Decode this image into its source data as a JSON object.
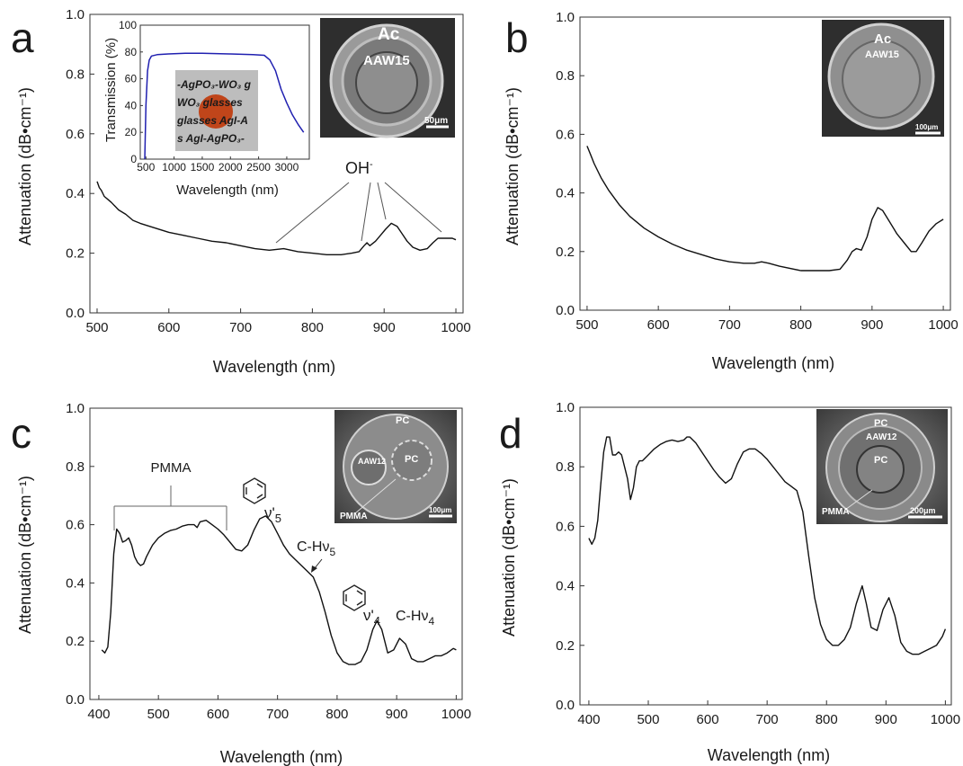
{
  "chart_data": [
    {
      "panel": "a",
      "type": "line",
      "xlabel": "Wavelength (nm)",
      "ylabel": "Attenuation (dB•cm⁻¹)",
      "xlim": [
        490,
        1010
      ],
      "ylim": [
        0.0,
        1.0
      ],
      "x_ticks": [
        500,
        600,
        700,
        800,
        900,
        1000
      ],
      "y_ticks": [
        0.0,
        0.2,
        0.4,
        0.6,
        0.8,
        1.0
      ],
      "x_tick_labels": [
        "500",
        "600",
        "700",
        "800",
        "900",
        "1000"
      ],
      "y_tick_labels": [
        "0.0",
        "0.2",
        "0.4",
        "0.6",
        "0.8",
        "1.0"
      ],
      "series": [
        {
          "x": [
            500,
            503,
            506,
            510,
            515,
            520,
            530,
            540,
            550,
            560,
            580,
            600,
            620,
            640,
            660,
            680,
            700,
            720,
            740,
            760,
            780,
            800,
            820,
            840,
            855,
            865,
            872,
            876,
            880,
            888,
            895,
            902,
            910,
            918,
            925,
            932,
            940,
            950,
            960,
            968,
            975,
            985,
            995,
            1000
          ],
          "y": [
            0.44,
            0.42,
            0.41,
            0.39,
            0.38,
            0.37,
            0.345,
            0.33,
            0.31,
            0.3,
            0.285,
            0.27,
            0.26,
            0.25,
            0.24,
            0.235,
            0.225,
            0.215,
            0.21,
            0.215,
            0.205,
            0.2,
            0.195,
            0.195,
            0.2,
            0.205,
            0.225,
            0.235,
            0.225,
            0.24,
            0.26,
            0.28,
            0.3,
            0.29,
            0.265,
            0.24,
            0.22,
            0.21,
            0.215,
            0.235,
            0.25,
            0.25,
            0.25,
            0.245
          ]
        }
      ],
      "annotations": [
        {
          "text": "OH",
          "superscript": "-"
        }
      ],
      "inset": {
        "type": "line",
        "xlabel": "Wavelength (nm)",
        "ylabel": "Transmission (%)",
        "xlim": [
          400,
          3400
        ],
        "ylim": [
          0,
          100
        ],
        "x_ticks": [
          500,
          1000,
          1500,
          2000,
          2500,
          3000
        ],
        "y_ticks": [
          0,
          20,
          40,
          60,
          80,
          100
        ],
        "x_tick_labels": [
          "500",
          "1000",
          "1500",
          "2000",
          "2500",
          "3000"
        ],
        "y_tick_labels": [
          "0",
          "20",
          "40",
          "60",
          "80",
          "100"
        ],
        "color": "#2020b0",
        "series": [
          {
            "x": [
              480,
              500,
              530,
              560,
              600,
              700,
              900,
              1200,
              1500,
              2000,
              2400,
              2600,
              2700,
              2800,
              2900,
              3000,
              3100,
              3200,
              3300
            ],
            "y": [
              0,
              40,
              66,
              74,
              77,
              78,
              78.5,
              79,
              79,
              78.5,
              78,
              77.5,
              74,
              66,
              52,
              42,
              33,
              26,
              20
            ]
          }
        ],
        "sample_text_lines": [
          "-AgPO₃-WO₃  g",
          "WO₃  glasses",
          "glasses  AgI-A",
          "s  AgI-AgPO₃-"
        ]
      },
      "micrograph": {
        "labels": [
          "Ac",
          "AAW15"
        ],
        "scale_bar": "50μm"
      }
    },
    {
      "panel": "b",
      "type": "line",
      "xlabel": "Wavelength (nm)",
      "ylabel": "Attenuation (dB•cm⁻¹)",
      "xlim": [
        490,
        1010
      ],
      "ylim": [
        0.0,
        1.0
      ],
      "x_ticks": [
        500,
        600,
        700,
        800,
        900,
        1000
      ],
      "y_ticks": [
        0.0,
        0.2,
        0.4,
        0.6,
        0.8,
        1.0
      ],
      "x_tick_labels": [
        "500",
        "600",
        "700",
        "800",
        "900",
        "1000"
      ],
      "y_tick_labels": [
        "0.0",
        "0.2",
        "0.4",
        "0.6",
        "0.8",
        "1.0"
      ],
      "series": [
        {
          "x": [
            500,
            505,
            510,
            520,
            530,
            545,
            560,
            580,
            600,
            620,
            640,
            660,
            680,
            700,
            720,
            735,
            745,
            755,
            770,
            800,
            820,
            840,
            855,
            865,
            872,
            878,
            885,
            893,
            900,
            908,
            915,
            925,
            935,
            945,
            955,
            962,
            970,
            980,
            990,
            1000
          ],
          "y": [
            0.56,
            0.53,
            0.5,
            0.45,
            0.41,
            0.36,
            0.32,
            0.28,
            0.25,
            0.225,
            0.205,
            0.19,
            0.175,
            0.165,
            0.16,
            0.16,
            0.165,
            0.16,
            0.15,
            0.135,
            0.135,
            0.135,
            0.14,
            0.17,
            0.2,
            0.21,
            0.205,
            0.25,
            0.31,
            0.35,
            0.34,
            0.3,
            0.26,
            0.23,
            0.2,
            0.2,
            0.23,
            0.27,
            0.295,
            0.31
          ]
        }
      ],
      "micrograph": {
        "labels": [
          "Ac",
          "AAW15"
        ],
        "scale_bar": "100μm"
      }
    },
    {
      "panel": "c",
      "type": "line",
      "xlabel": "Wavelength (nm)",
      "ylabel": "Attenuation (dB•cm⁻¹)",
      "xlim": [
        385,
        1010
      ],
      "ylim": [
        0.0,
        1.0
      ],
      "x_ticks": [
        400,
        500,
        600,
        700,
        800,
        900,
        1000
      ],
      "y_ticks": [
        0.0,
        0.2,
        0.4,
        0.6,
        0.8,
        1.0
      ],
      "x_tick_labels": [
        "400",
        "500",
        "600",
        "700",
        "800",
        "900",
        "1000"
      ],
      "y_tick_labels": [
        "0.0",
        "0.2",
        "0.4",
        "0.6",
        "0.8",
        "1.0"
      ],
      "series": [
        {
          "x": [
            405,
            410,
            415,
            420,
            425,
            430,
            435,
            440,
            445,
            450,
            455,
            460,
            465,
            470,
            475,
            480,
            485,
            490,
            500,
            510,
            520,
            530,
            540,
            550,
            560,
            565,
            570,
            580,
            590,
            600,
            610,
            620,
            630,
            640,
            650,
            660,
            670,
            680,
            690,
            700,
            710,
            720,
            730,
            740,
            750,
            760,
            770,
            780,
            790,
            800,
            810,
            820,
            830,
            840,
            850,
            860,
            867,
            875,
            885,
            895,
            905,
            915,
            925,
            935,
            945,
            955,
            965,
            975,
            985,
            995,
            1000
          ],
          "y": [
            0.17,
            0.16,
            0.18,
            0.3,
            0.5,
            0.585,
            0.57,
            0.54,
            0.545,
            0.555,
            0.53,
            0.49,
            0.47,
            0.46,
            0.465,
            0.49,
            0.51,
            0.53,
            0.555,
            0.57,
            0.58,
            0.585,
            0.595,
            0.6,
            0.6,
            0.59,
            0.61,
            0.615,
            0.6,
            0.585,
            0.565,
            0.54,
            0.515,
            0.51,
            0.53,
            0.58,
            0.62,
            0.63,
            0.61,
            0.57,
            0.53,
            0.5,
            0.48,
            0.46,
            0.44,
            0.42,
            0.37,
            0.3,
            0.22,
            0.16,
            0.13,
            0.12,
            0.12,
            0.13,
            0.17,
            0.24,
            0.27,
            0.24,
            0.16,
            0.17,
            0.21,
            0.19,
            0.14,
            0.13,
            0.13,
            0.14,
            0.15,
            0.15,
            0.16,
            0.175,
            0.17
          ]
        }
      ],
      "annotations": [
        {
          "text": "PMMA"
        },
        {
          "text": "ν'",
          "subscript": "5"
        },
        {
          "text": "C-Hν",
          "subscript": "5"
        },
        {
          "text": "ν'",
          "subscript": "4"
        },
        {
          "text": "C-Hν",
          "subscript": "4"
        }
      ],
      "micrograph": {
        "labels": [
          "PC",
          "PC",
          "AAW12",
          "PMMA"
        ],
        "scale_bar": "100μm"
      }
    },
    {
      "panel": "d",
      "type": "line",
      "xlabel": "Wavelength (nm)",
      "ylabel": "Attenuation (dB•cm⁻¹)",
      "xlim": [
        385,
        1010
      ],
      "ylim": [
        0.0,
        1.0
      ],
      "x_ticks": [
        400,
        500,
        600,
        700,
        800,
        900,
        1000
      ],
      "y_ticks": [
        0.0,
        0.2,
        0.4,
        0.6,
        0.8,
        1.0
      ],
      "x_tick_labels": [
        "400",
        "500",
        "600",
        "700",
        "800",
        "900",
        "1000"
      ],
      "y_tick_labels": [
        "0.0",
        "0.2",
        "0.4",
        "0.6",
        "0.8",
        "1.0"
      ],
      "series": [
        {
          "x": [
            400,
            405,
            410,
            415,
            420,
            425,
            430,
            435,
            440,
            445,
            450,
            455,
            460,
            465,
            470,
            475,
            480,
            485,
            490,
            500,
            510,
            520,
            530,
            540,
            550,
            560,
            565,
            570,
            580,
            590,
            600,
            610,
            620,
            630,
            640,
            650,
            660,
            670,
            680,
            690,
            700,
            710,
            720,
            730,
            740,
            750,
            760,
            770,
            780,
            790,
            800,
            810,
            820,
            830,
            840,
            850,
            860,
            867,
            875,
            885,
            895,
            905,
            915,
            925,
            935,
            945,
            955,
            965,
            975,
            985,
            995,
            1000
          ],
          "y": [
            0.56,
            0.54,
            0.56,
            0.62,
            0.74,
            0.85,
            0.9,
            0.9,
            0.84,
            0.84,
            0.85,
            0.84,
            0.8,
            0.76,
            0.69,
            0.73,
            0.8,
            0.82,
            0.82,
            0.84,
            0.86,
            0.875,
            0.885,
            0.89,
            0.885,
            0.89,
            0.9,
            0.9,
            0.88,
            0.85,
            0.82,
            0.79,
            0.765,
            0.745,
            0.76,
            0.81,
            0.85,
            0.86,
            0.86,
            0.845,
            0.825,
            0.8,
            0.775,
            0.75,
            0.735,
            0.72,
            0.65,
            0.5,
            0.36,
            0.27,
            0.22,
            0.2,
            0.2,
            0.22,
            0.26,
            0.34,
            0.4,
            0.34,
            0.26,
            0.25,
            0.32,
            0.36,
            0.3,
            0.21,
            0.18,
            0.17,
            0.17,
            0.18,
            0.19,
            0.2,
            0.23,
            0.255
          ]
        }
      ],
      "micrograph": {
        "labels": [
          "PC",
          "AAW12",
          "PC",
          "PMMA"
        ],
        "scale_bar": "200μm"
      }
    }
  ],
  "panel_letters": [
    "a",
    "b",
    "c",
    "d"
  ],
  "colors": {
    "curve": "#111111",
    "inset_curve": "#2020b0",
    "sample_disk": "#c0451a"
  }
}
